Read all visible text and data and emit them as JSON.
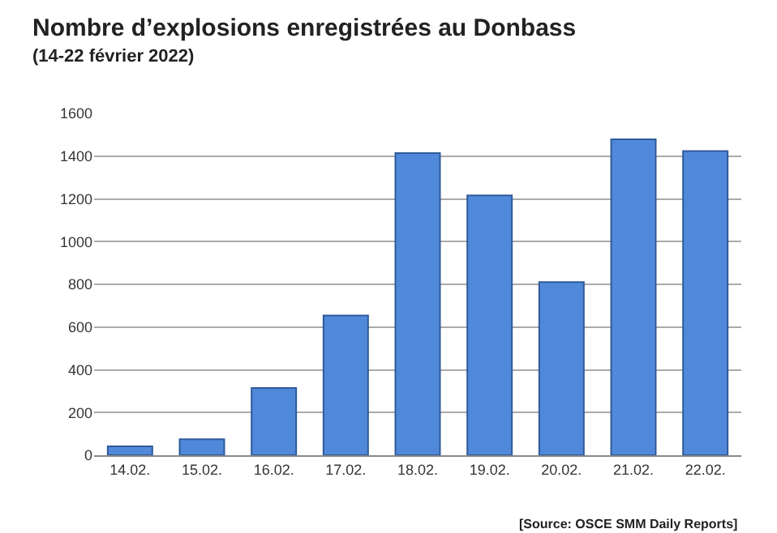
{
  "chart_data": {
    "type": "bar",
    "title": "Nombre d’explosions enregistrées au Donbass",
    "subtitle": "(14-22 février 2022)",
    "categories": [
      "14.02.",
      "15.02.",
      "16.02.",
      "17.02.",
      "18.02.",
      "19.02.",
      "20.02.",
      "21.02.",
      "22.02."
    ],
    "values": [
      42,
      75,
      315,
      654,
      1414,
      1216,
      810,
      1479,
      1424
    ],
    "color": "#5189da",
    "ylim": [
      0,
      1600
    ],
    "yticks": [
      0,
      200,
      400,
      600,
      800,
      1000,
      1200,
      1400,
      1600
    ],
    "grid": "y",
    "annotations": [
      "[Source: OSCE SMM Daily Reports]"
    ]
  }
}
